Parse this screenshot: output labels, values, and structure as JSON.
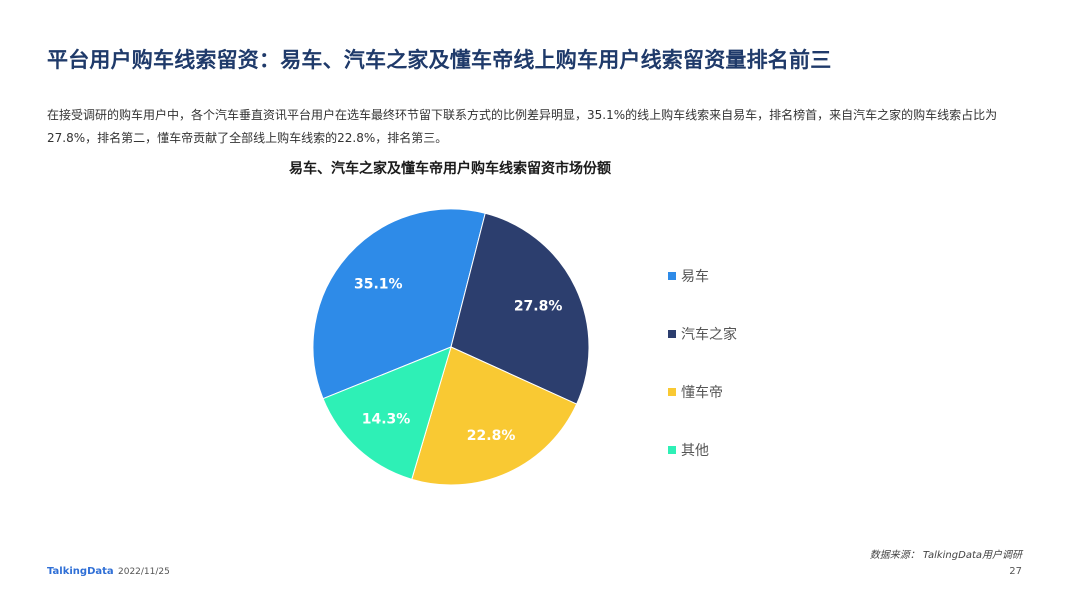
{
  "slide": {
    "title": "平台用户购车线索留资：易车、汽车之家及懂车帝线上购车用户线索留资量排名前三",
    "description": "在接受调研的购车用户中，各个汽车垂直资讯平台用户在选车最终环节留下联系方式的比例差异明显，35.1%的线上购车线索来自易车，排名榜首，来自汽车之家的购车线索占比为27.8%，排名第二，懂车帝贡献了全部线上购车线索的22.8%，排名第三。",
    "source": "数据来源： TalkingData用户调研",
    "logo": "TalkingData",
    "date": "2022/11/25",
    "page_number": "27"
  },
  "chart_data": {
    "type": "pie",
    "title": "易车、汽车之家及懂车帝用户购车线索留资市场份额",
    "legend_position": "right",
    "slices": [
      {
        "name": "易车",
        "value": 35.1,
        "label": "35.1%",
        "color": "#2e8be8"
      },
      {
        "name": "汽车之家",
        "value": 27.8,
        "label": "27.8%",
        "color": "#2c3e6e"
      },
      {
        "name": "懂车帝",
        "value": 22.8,
        "label": "22.8%",
        "color": "#f9c933"
      },
      {
        "name": "其他",
        "value": 14.3,
        "label": "14.3%",
        "color": "#2ef0b6"
      }
    ]
  }
}
